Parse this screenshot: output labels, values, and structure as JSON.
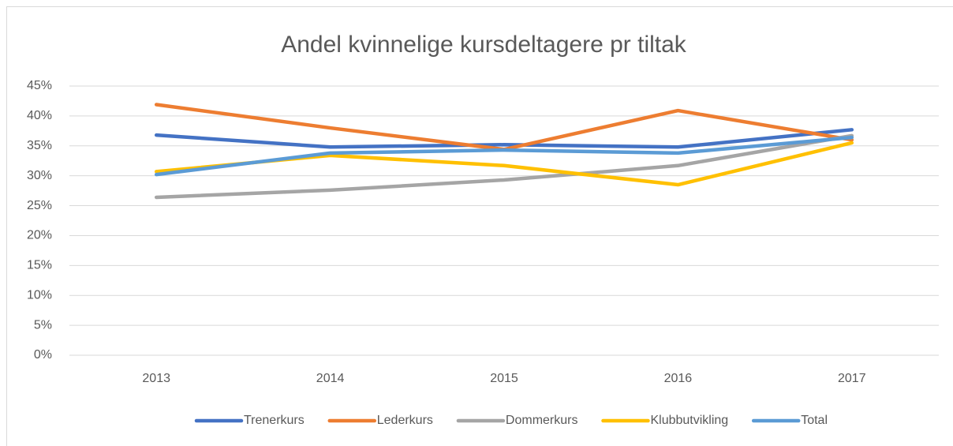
{
  "chart_data": {
    "type": "line",
    "title": "Andel kvinnelige kursdeltagere pr tiltak",
    "categories": [
      "2013",
      "2014",
      "2015",
      "2016",
      "2017"
    ],
    "series": [
      {
        "name": "Trenerkurs",
        "color": "#4472c4",
        "values": [
          36.8,
          34.8,
          35.2,
          34.8,
          37.7
        ]
      },
      {
        "name": "Lederkurs",
        "color": "#ed7d31",
        "values": [
          41.9,
          38.0,
          34.4,
          40.9,
          36.0
        ]
      },
      {
        "name": "Dommerkurs",
        "color": "#a5a5a5",
        "values": [
          26.4,
          27.6,
          29.3,
          31.7,
          36.7
        ]
      },
      {
        "name": "Klubbutvikling",
        "color": "#ffc000",
        "values": [
          30.7,
          33.4,
          31.7,
          28.5,
          35.5
        ]
      },
      {
        "name": "Total",
        "color": "#5b9bd5",
        "values": [
          30.2,
          33.8,
          34.3,
          33.8,
          36.4
        ]
      }
    ],
    "ylim": [
      0,
      45
    ],
    "yticks": [
      {
        "value": 0,
        "label": "0%"
      },
      {
        "value": 5,
        "label": "5%"
      },
      {
        "value": 10,
        "label": "10%"
      },
      {
        "value": 15,
        "label": "15%"
      },
      {
        "value": 20,
        "label": "20%"
      },
      {
        "value": 25,
        "label": "25%"
      },
      {
        "value": 30,
        "label": "30%"
      },
      {
        "value": 35,
        "label": "35%"
      },
      {
        "value": 40,
        "label": "40%"
      },
      {
        "value": 45,
        "label": "45%"
      }
    ],
    "grid": true,
    "legend": "bottom"
  }
}
